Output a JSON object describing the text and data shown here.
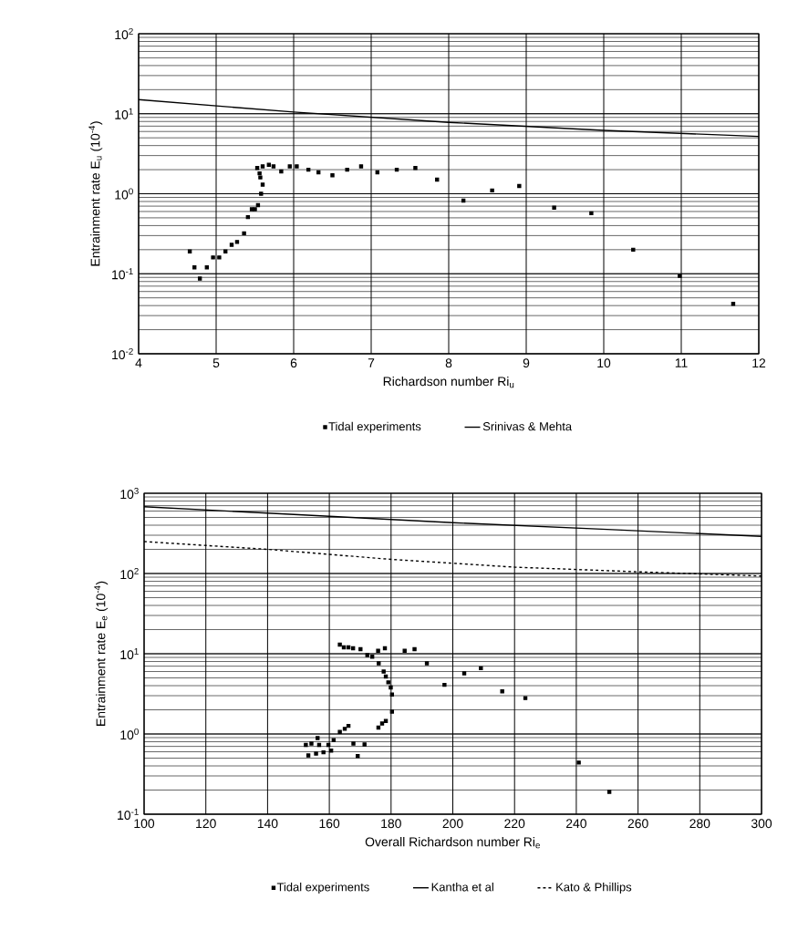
{
  "chart_data": [
    {
      "type": "scatter",
      "xlabel": "Richardson number Ri$_{u}$",
      "ylabel": "Entrainment rate E$_{u}$ (10$^{-4}$)",
      "log": "y",
      "grid": true,
      "legend": "bottom",
      "xlim": [
        4,
        12
      ],
      "xticks": [
        4,
        5,
        6,
        7,
        8,
        9,
        10,
        11,
        12
      ],
      "ylim": [
        0.01,
        100
      ],
      "yticks": [
        {
          "value": 0.01,
          "label": "10$^{-2}$"
        },
        {
          "value": 0.1,
          "label": "10$^{-1}$"
        },
        {
          "value": 1,
          "label": "10$^{0}$"
        },
        {
          "value": 10,
          "label": "10$^{1}$"
        },
        {
          "value": 100,
          "label": "10$^{2}$"
        }
      ],
      "series": [
        {
          "name": "Tidal experiments",
          "marker": "square",
          "color": "#000000",
          "x": [
            4.66,
            4.72,
            4.79,
            4.88,
            4.96,
            5.04,
            5.12,
            5.2,
            5.27,
            5.36,
            5.41,
            5.46,
            5.5,
            5.54,
            5.58,
            5.6,
            5.57,
            5.56,
            5.53,
            5.6,
            5.68,
            5.74,
            5.84,
            5.95,
            6.04,
            6.19,
            6.32,
            6.5,
            6.69,
            6.87,
            7.08,
            7.33,
            7.57,
            7.85,
            8.19,
            8.56,
            8.91,
            9.36,
            9.84,
            10.38,
            10.98,
            11.67
          ],
          "values": [
            0.19,
            0.12,
            0.087,
            0.12,
            0.16,
            0.16,
            0.19,
            0.23,
            0.25,
            0.32,
            0.51,
            0.64,
            0.64,
            0.72,
            1.0,
            1.3,
            1.6,
            1.8,
            2.1,
            2.2,
            2.3,
            2.2,
            1.9,
            2.2,
            2.2,
            2.0,
            1.85,
            1.7,
            2.0,
            2.2,
            1.85,
            2.0,
            2.1,
            1.5,
            0.82,
            1.1,
            1.25,
            0.67,
            0.57,
            0.2,
            0.094,
            0.042
          ]
        },
        {
          "name": "Srinivas & Mehta",
          "type": "line",
          "line_style": "solid",
          "color": "#000000",
          "x": [
            4,
            6,
            8,
            10,
            12
          ],
          "values": [
            15,
            10.5,
            7.8,
            6.2,
            5.2
          ]
        }
      ]
    },
    {
      "type": "scatter",
      "xlabel": "Overall Richardson number Ri$_{e}$",
      "ylabel": "Entrainment rate E$_{e}$ (10$^{-4}$)",
      "log": "y",
      "grid": true,
      "legend": "bottom",
      "xlim": [
        100,
        300
      ],
      "xticks": [
        100,
        120,
        140,
        160,
        180,
        200,
        220,
        240,
        260,
        280,
        300
      ],
      "ylim": [
        0.1,
        1000
      ],
      "yticks": [
        {
          "value": 0.1,
          "label": "10$^{-1}$"
        },
        {
          "value": 1,
          "label": "10$^{0}$"
        },
        {
          "value": 10,
          "label": "10$^{1}$"
        },
        {
          "value": 100,
          "label": "10$^{2}$"
        },
        {
          "value": 1000,
          "label": "10$^{3}$"
        }
      ],
      "series": [
        {
          "name": "Tidal experiments",
          "marker": "square",
          "color": "#000000",
          "x": [
            163.4,
            164.7,
            166.2,
            167.7,
            170.1,
            172.3,
            173.9,
            175.8,
            178.0,
            176.0,
            177.6,
            178.3,
            179.1,
            179.9,
            180.3,
            180.3,
            178.3,
            177.1,
            175.9,
            166.2,
            165.0,
            163.4,
            161.4,
            159.7,
            156.7,
            156.2,
            154.2,
            152.4,
            153.2,
            155.7,
            158.1,
            160.6,
            167.8,
            171.4,
            169.2,
            184.4,
            187.6,
            191.6,
            203.7,
            209.1,
            197.3,
            216.0,
            223.5,
            240.8,
            250.7
          ],
          "values": [
            13,
            12,
            12,
            11.7,
            11.4,
            9.6,
            9.2,
            10.9,
            11.7,
            7.6,
            6.0,
            5.2,
            4.4,
            3.8,
            3.1,
            1.9,
            1.45,
            1.35,
            1.2,
            1.26,
            1.16,
            1.06,
            0.84,
            0.73,
            0.73,
            0.89,
            0.76,
            0.73,
            0.54,
            0.57,
            0.59,
            0.62,
            0.76,
            0.74,
            0.53,
            10.9,
            11.4,
            7.6,
            5.7,
            6.6,
            4.1,
            3.4,
            2.8,
            0.44,
            0.19
          ]
        },
        {
          "name": "Kantha et al",
          "type": "line",
          "line_style": "solid",
          "color": "#000000",
          "x": [
            100,
            150,
            200,
            250,
            300
          ],
          "values": [
            680,
            540,
            430,
            355,
            290
          ]
        },
        {
          "name": "Kato & Phillips",
          "type": "line",
          "line_style": "dashed",
          "color": "#000000",
          "x": [
            100,
            140,
            180,
            220,
            260,
            300
          ],
          "values": [
            250,
            200,
            150,
            120,
            105,
            93
          ]
        }
      ]
    }
  ]
}
